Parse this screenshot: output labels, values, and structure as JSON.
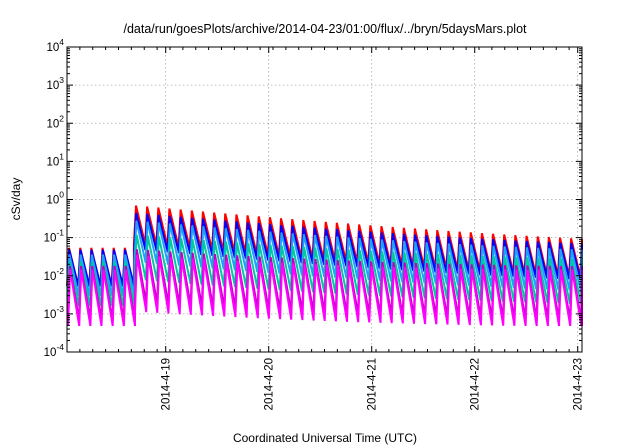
{
  "chart_data": {
    "type": "line",
    "title": "/data/run/goesPlots/archive/2014-04-23/01:00/flux/../bryn/5daysMars.plot",
    "xlabel": "Coordinated Universal Time (UTC)",
    "ylabel": "cSv/day",
    "y_scale": "log",
    "ylim": [
      0.0001,
      10000
    ],
    "y_ticks": [
      {
        "base": "10",
        "exp": "-4",
        "value": 0.0001
      },
      {
        "base": "10",
        "exp": "-3",
        "value": 0.001
      },
      {
        "base": "10",
        "exp": "-2",
        "value": 0.01
      },
      {
        "base": "10",
        "exp": "-1",
        "value": 0.1
      },
      {
        "base": "10",
        "exp": "0",
        "value": 1
      },
      {
        "base": "10",
        "exp": "1",
        "value": 10
      },
      {
        "base": "10",
        "exp": "2",
        "value": 100
      },
      {
        "base": "10",
        "exp": "3",
        "value": 1000
      },
      {
        "base": "10",
        "exp": "4",
        "value": 10000
      }
    ],
    "xlim": [
      "2014-04-18T01:00",
      "2014-04-23T01:00"
    ],
    "x_ticks": [
      {
        "label": "2014-4-19",
        "value": "2014-04-19T00:00"
      },
      {
        "label": "2014-4-20",
        "value": "2014-04-20T00:00"
      },
      {
        "label": "2014-4-21",
        "value": "2014-04-21T00:00"
      },
      {
        "label": "2014-4-22",
        "value": "2014-04-22T00:00"
      },
      {
        "label": "2014-4-23",
        "value": "2014-04-23T00:00"
      }
    ],
    "grid": true,
    "orbit_period_hours": 2.6,
    "event_start": "2014-04-18T16:00",
    "series": [
      {
        "color": "#ff0000",
        "rise_ratio": 10,
        "baseline": 0.045,
        "event_peak": 0.7
      },
      {
        "color": "#0000ff",
        "rise_ratio": 9,
        "baseline": 0.04,
        "event_peak": 0.45
      },
      {
        "color": "#1f9fff",
        "rise_ratio": 12,
        "baseline": 0.03,
        "event_peak": 0.28
      },
      {
        "color": "#00c8a0",
        "rise_ratio": 15,
        "baseline": 0.02,
        "event_peak": 0.12
      },
      {
        "color": "#c000c0",
        "rise_ratio": 25,
        "baseline": 0.015,
        "event_peak": 0.05
      },
      {
        "color": "#ff00ff",
        "rise_ratio": 30,
        "baseline": 0.012,
        "event_peak": 0.035
      }
    ]
  }
}
